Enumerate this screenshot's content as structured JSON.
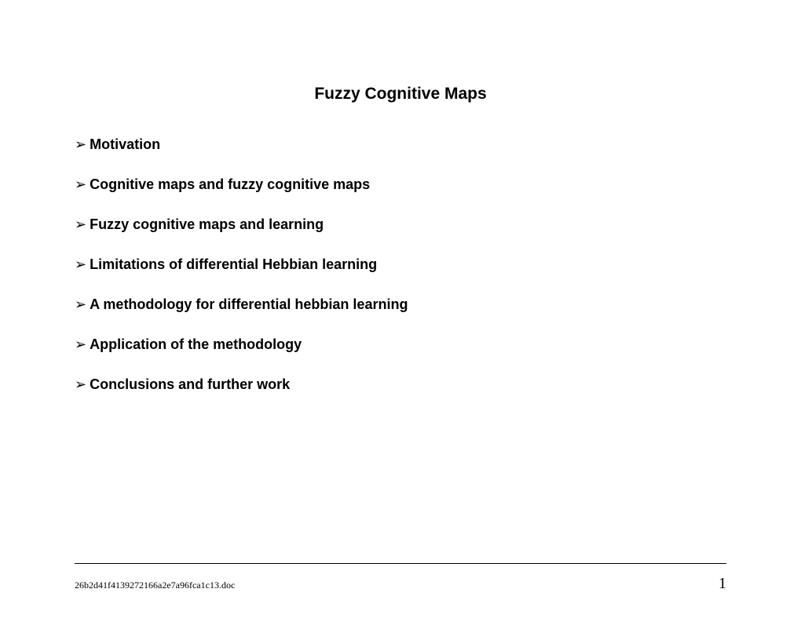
{
  "title": "Fuzzy Cognitive Maps",
  "bullets": [
    "Motivation",
    "Cognitive maps and fuzzy cognitive maps",
    "Fuzzy cognitive maps and learning",
    "Limitations of differential Hebbian learning",
    "A methodology for differential hebbian learning",
    "Application of the methodology",
    "Conclusions and further work"
  ],
  "footer": {
    "filename": "26b2d41f4139272166a2e7a96fca1c13.doc",
    "page": "1"
  },
  "colors": {
    "background": "#ffffff",
    "text": "#000000",
    "line": "#000000"
  },
  "typography": {
    "title_fontsize": 21,
    "bullet_fontsize": 18,
    "footer_filename_fontsize": 12,
    "footer_page_fontsize": 20,
    "title_weight": "bold",
    "bullet_weight": "bold"
  }
}
